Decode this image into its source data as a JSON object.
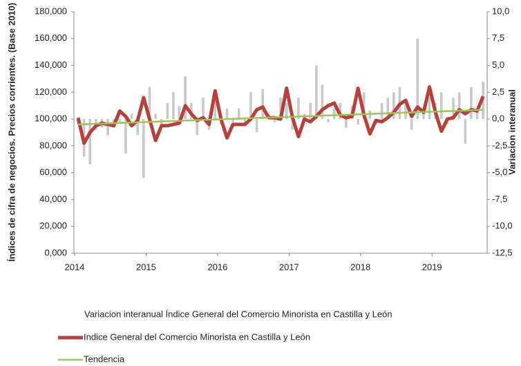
{
  "chart_data": {
    "type": "combo",
    "y_label": "Índices de cifra de negocios. Precios corrientes. (Base 2010)",
    "y2_label": "Variacion interanual",
    "categories": [
      "2014",
      null,
      null,
      null,
      null,
      null,
      null,
      null,
      null,
      null,
      null,
      null,
      "2015",
      null,
      null,
      null,
      null,
      null,
      null,
      null,
      null,
      null,
      null,
      null,
      "2016",
      null,
      null,
      null,
      null,
      null,
      null,
      null,
      null,
      null,
      null,
      null,
      "2017",
      null,
      null,
      null,
      null,
      null,
      null,
      null,
      null,
      null,
      null,
      null,
      "2018",
      null,
      null,
      null,
      null,
      null,
      null,
      null,
      null,
      null,
      null,
      null,
      "2019",
      null,
      null,
      null,
      null,
      null,
      null,
      null,
      null
    ],
    "ylim": [
      0,
      180000
    ],
    "yticks": [
      {
        "value": 0,
        "label": "0,000"
      },
      {
        "value": 20000,
        "label": "20,000"
      },
      {
        "value": 40000,
        "label": "40,000"
      },
      {
        "value": 60000,
        "label": "60,000"
      },
      {
        "value": 80000,
        "label": "80,000"
      },
      {
        "value": 100000,
        "label": "100,000"
      },
      {
        "value": 120000,
        "label": "120,000"
      },
      {
        "value": 140000,
        "label": "140,000"
      },
      {
        "value": 160000,
        "label": "160,000"
      },
      {
        "value": 180000,
        "label": "180,000"
      }
    ],
    "y2lim": [
      -12.5,
      10
    ],
    "y2ticks": [
      {
        "value": 10,
        "label": "10,0"
      },
      {
        "value": 7.5,
        "label": "7,5"
      },
      {
        "value": 5,
        "label": "5,0"
      },
      {
        "value": 2.5,
        "label": "2,5"
      },
      {
        "value": 0,
        "label": "0,0"
      },
      {
        "value": -2.5,
        "label": "-2,5"
      },
      {
        "value": -5,
        "label": "-5,0"
      },
      {
        "value": -7.5,
        "label": "-7,5"
      },
      {
        "value": -10,
        "label": "-10,0"
      },
      {
        "value": -12.5,
        "label": "-12,5"
      }
    ],
    "series": [
      {
        "name": "Variacion interanual Índice General del Comercio Minorista en Castilla y León",
        "type": "bar",
        "axis": "y2",
        "color": "#c9c9c9",
        "values": [
          -0.5,
          -3.5,
          -4.2,
          -1.0,
          -0.8,
          -1.5,
          -0.5,
          -0.3,
          -3.2,
          0.5,
          -1.5,
          -5.5,
          3.0,
          0.5,
          -0.8,
          1.5,
          2.5,
          1.2,
          4.0,
          1.5,
          -1.5,
          2.0,
          -1.0,
          2.2,
          -0.5,
          1.0,
          -0.3,
          1.0,
          -0.5,
          2.5,
          -1.2,
          2.8,
          0.5,
          -0.3,
          2.0,
          1.5,
          -1.0,
          2.0,
          0.5,
          1.5,
          5.0,
          3.2,
          -0.3,
          1.0,
          1.5,
          -0.8,
          1.2,
          -0.5,
          2.5,
          0.8,
          -0.5,
          1.5,
          2.0,
          2.5,
          3.0,
          1.5,
          -1.0,
          7.5,
          0.5,
          2.0,
          1.5,
          2.5,
          -0.5,
          2.0,
          2.5,
          -2.3,
          3.0,
          1.0,
          3.5
        ]
      },
      {
        "name": "Indice General del Comercio Minorista en Castilla y León",
        "type": "line",
        "color": "#b4413b",
        "values": [
          101000,
          82000,
          90000,
          95000,
          97000,
          96000,
          95000,
          106000,
          102000,
          95000,
          99000,
          116000,
          100000,
          84000,
          95000,
          95000,
          96000,
          97000,
          110000,
          104000,
          99000,
          101000,
          96000,
          121000,
          100000,
          86000,
          96000,
          96000,
          96000,
          100000,
          107000,
          109000,
          101000,
          101000,
          100000,
          123000,
          101000,
          87000,
          100000,
          98000,
          102000,
          107000,
          110000,
          112000,
          103000,
          101000,
          102000,
          123000,
          103000,
          89000,
          99000,
          98000,
          101000,
          105000,
          111000,
          114000,
          102000,
          109000,
          105000,
          124000,
          105000,
          91000,
          100000,
          101000,
          107000,
          104000,
          107000,
          106000,
          117000
        ]
      },
      {
        "name": "Tendencia",
        "type": "line",
        "color": "#9bc45a",
        "values": [
          96000,
          96160,
          96320,
          96480,
          96640,
          96800,
          96960,
          97120,
          97280,
          97440,
          97600,
          97760,
          97920,
          98080,
          98240,
          98400,
          98560,
          98720,
          98880,
          99040,
          99200,
          99360,
          99520,
          99680,
          99840,
          100000,
          100160,
          100320,
          100480,
          100640,
          100800,
          100960,
          101120,
          101280,
          101440,
          101600,
          101760,
          101920,
          102080,
          102240,
          102400,
          102560,
          102720,
          102880,
          103040,
          103200,
          103360,
          103520,
          103680,
          103840,
          104000,
          104160,
          104320,
          104480,
          104640,
          104800,
          104960,
          105120,
          105280,
          105440,
          105600,
          105760,
          105920,
          106080,
          106240,
          106400,
          106560,
          106720,
          106880
        ]
      }
    ]
  }
}
